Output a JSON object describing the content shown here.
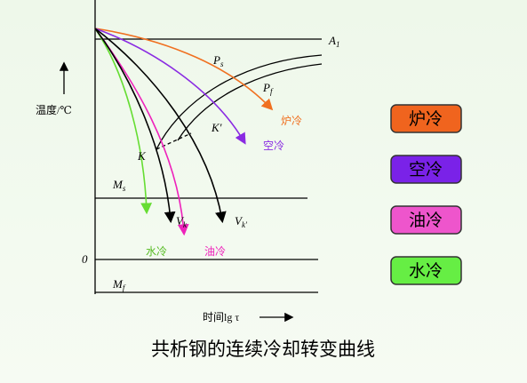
{
  "diagram": {
    "caption": "共析钢的连续冷却转变曲线",
    "y_axis_label": "温度/℃",
    "x_axis_label": "时间lg τ",
    "lines": {
      "a1": {
        "main": "A",
        "sub": "1"
      },
      "ms": {
        "main": "M",
        "sub": "s"
      },
      "zero": "0",
      "mf": {
        "main": "M",
        "sub": "f"
      }
    },
    "curve_labels": {
      "ps": {
        "main": "P",
        "sub": "s"
      },
      "pf": {
        "main": "P",
        "sub": "f"
      },
      "k": "K",
      "k_prime": "K'",
      "vk": {
        "main": "V",
        "sub": "k"
      },
      "vk_prime": {
        "main": "V",
        "sub": "k'"
      }
    },
    "cooling_labels": {
      "furnace": "炉冷",
      "air": "空冷",
      "oil": "油冷",
      "water": "水冷"
    },
    "legend": [
      "炉冷",
      "空冷",
      "油冷",
      "水冷"
    ]
  }
}
